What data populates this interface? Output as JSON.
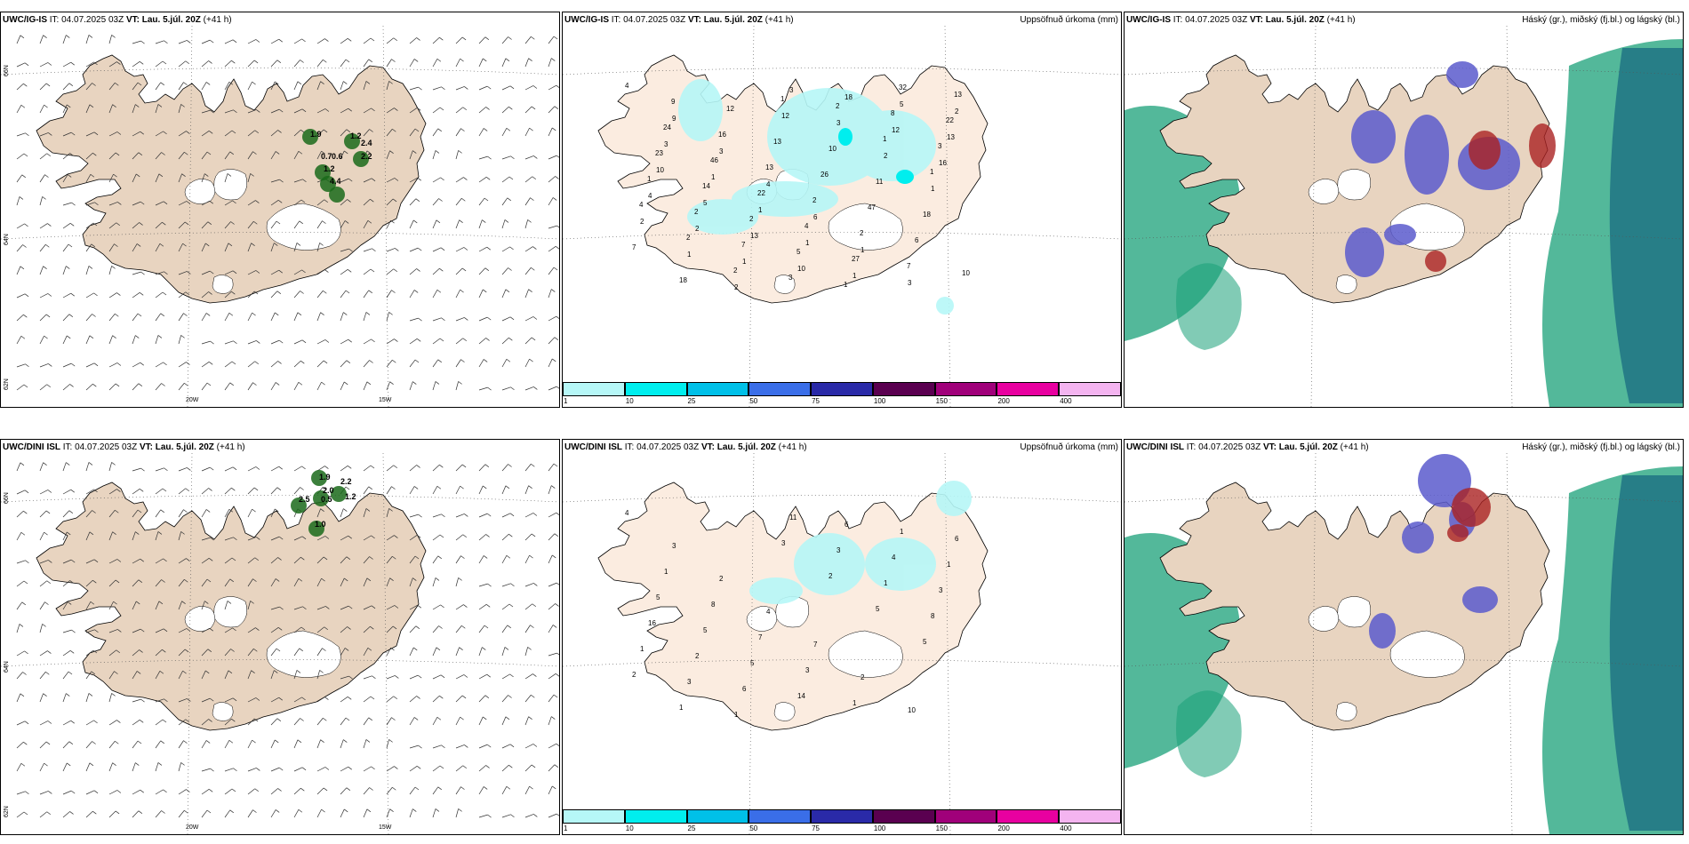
{
  "panels": [
    {
      "id": "p1",
      "model": "UWC/IG-IS",
      "it_label": "IT:",
      "it": "04.07.2025 03Z",
      "vt_label": "VT:",
      "vt": "Lau. 5.júl. 20Z",
      "lead": "(+41 h)",
      "right": "",
      "kind": "wind"
    },
    {
      "id": "p2",
      "model": "UWC/IG-IS",
      "it_label": "IT:",
      "it": "04.07.2025 03Z",
      "vt_label": "VT:",
      "vt": "Lau. 5.júl. 20Z",
      "lead": "(+41 h)",
      "right": "Uppsöfnuð úrkoma (mm)",
      "kind": "precip"
    },
    {
      "id": "p3",
      "model": "UWC/IG-IS",
      "it_label": "IT:",
      "it": "04.07.2025 03Z",
      "vt_label": "VT:",
      "vt": "Lau. 5.júl. 20Z",
      "lead": "(+41 h)",
      "right": "Háský (gr.), miðský (fj.bl.) og lágský (bl.)",
      "kind": "cloud"
    },
    {
      "id": "p4",
      "model": "UWC/DINI ISL",
      "it_label": "IT:",
      "it": "04.07.2025 03Z",
      "vt_label": "VT:",
      "vt": "Lau. 5.júl. 20Z",
      "lead": "(+41 h)",
      "right": "",
      "kind": "wind"
    },
    {
      "id": "p5",
      "model": "UWC/DINI ISL",
      "it_label": "IT:",
      "it": "04.07.2025 03Z",
      "vt_label": "VT:",
      "vt": "Lau. 5.júl. 20Z",
      "lead": "(+41 h)",
      "right": "Uppsöfnuð úrkoma (mm)",
      "kind": "precip"
    },
    {
      "id": "p6",
      "model": "UWC/DINI ISL",
      "it_label": "IT:",
      "it": "04.07.2025 03Z",
      "vt_label": "VT:",
      "vt": "Lau. 5.júl. 20Z",
      "lead": "(+41 h)",
      "right": "Háský (gr.), miðský (fj.bl.) og lágský (bl.)",
      "kind": "cloud"
    }
  ],
  "grid_labels": {
    "lon_w20": "20W",
    "lon_w15": "15W",
    "lat_66": "66N",
    "lat_64": "64N",
    "lat_62": "62N"
  },
  "colorbar": {
    "ticks": [
      "1",
      "10",
      "25",
      "50",
      "75",
      "100",
      "150",
      "200",
      "400"
    ],
    "colors": [
      "#b6f7f7",
      "#00eeee",
      "#00c0e8",
      "#3a6ee8",
      "#2a2aa8",
      "#5a0050",
      "#a0007a",
      "#e800a0",
      "#f4b4f0"
    ]
  },
  "colors": {
    "land": "#e8d4c0",
    "land_precip": "#fbece0",
    "coast": "#000000",
    "cloud_high": "#1aa078",
    "cloud_mid": "#5a5acc",
    "cloud_low": "#aa2222"
  },
  "precip_labels_top": [
    "4",
    "9",
    "3",
    "4",
    "6",
    "1",
    "3",
    "2",
    "3",
    "1",
    "1",
    "1",
    "1",
    "5",
    "13",
    "10",
    "5",
    "13",
    "10",
    "18",
    "12",
    "16",
    "4",
    "2",
    "1",
    "3",
    "3",
    "2",
    "1",
    "2",
    "1",
    "2",
    "12",
    "10",
    "11",
    "18",
    "7",
    "18",
    "12",
    "13",
    "26",
    "47",
    "6",
    "10",
    "9",
    "16",
    "13",
    "2",
    "2",
    "7",
    "13",
    "24",
    "46",
    "22",
    "4",
    "27",
    "32",
    "22",
    "23",
    "14",
    "2",
    "5",
    "1",
    "8",
    "3",
    "1",
    "2",
    "7",
    "3",
    "2",
    "1",
    "1",
    "4",
    "2",
    "2",
    "1"
  ],
  "precip_labels_bot": [
    "4",
    "3",
    "2",
    "4",
    "7",
    "2",
    "10",
    "6",
    "1",
    "8",
    "7",
    "3",
    "1",
    "1",
    "1",
    "5",
    "5",
    "5",
    "14",
    "6",
    "4",
    "3",
    "16",
    "2",
    "6",
    "11",
    "3",
    "1",
    "8",
    "1",
    "3",
    "1",
    "3",
    "2",
    "5",
    "5",
    "2",
    "1"
  ],
  "wind_labels_top": [
    "1.9",
    "1.2",
    "2.4",
    "0.7",
    "0.6",
    "2.2",
    "1.2",
    "4.4"
  ],
  "wind_labels_bot": [
    "1.9",
    "2.2",
    "2.0",
    "2.5",
    "0.5",
    "1.2",
    "1.0"
  ]
}
